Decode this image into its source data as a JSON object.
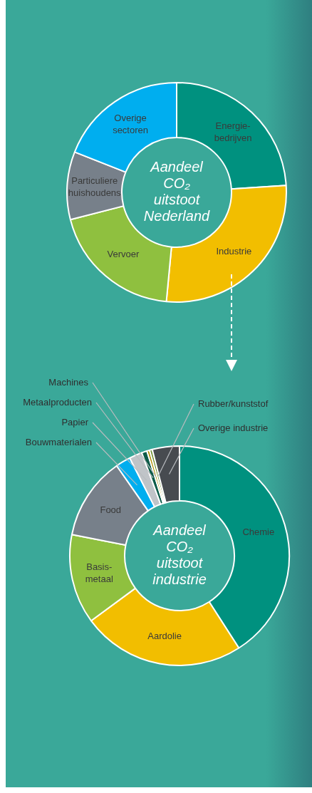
{
  "chart_data": [
    {
      "type": "donut",
      "title": "Aandeel CO₂ uitstoot Nederland",
      "categories": [
        "Energie-bedrijven",
        "Industrie",
        "Vervoer",
        "Particuliere huishoudens",
        "Overige sectoren"
      ],
      "values": [
        24,
        27.5,
        19.5,
        10,
        19
      ],
      "colors": [
        "#00917f",
        "#f2be00",
        "#8fc03f",
        "#77808a",
        "#00aeef"
      ]
    },
    {
      "type": "donut",
      "title": "Aandeel CO₂ uitstoot industrie",
      "categories": [
        "Chemie",
        "Aardolie",
        "Basis-metaal",
        "Food",
        "Bouwmaterialen",
        "Papier",
        "Metaalproducten",
        "Machines",
        "Rubber/kunststof",
        "Overige industrie"
      ],
      "values": [
        40.9,
        24,
        13.2,
        12.2,
        2.2,
        1.9,
        0.8,
        0.4,
        0.4,
        4
      ],
      "colors": [
        "#00917f",
        "#f2be00",
        "#8fc03f",
        "#77808a",
        "#00aeef",
        "#c0c4c8",
        "#0d5b48",
        "#b08d00",
        "#6a8c2a",
        "#474b50"
      ]
    }
  ]
}
